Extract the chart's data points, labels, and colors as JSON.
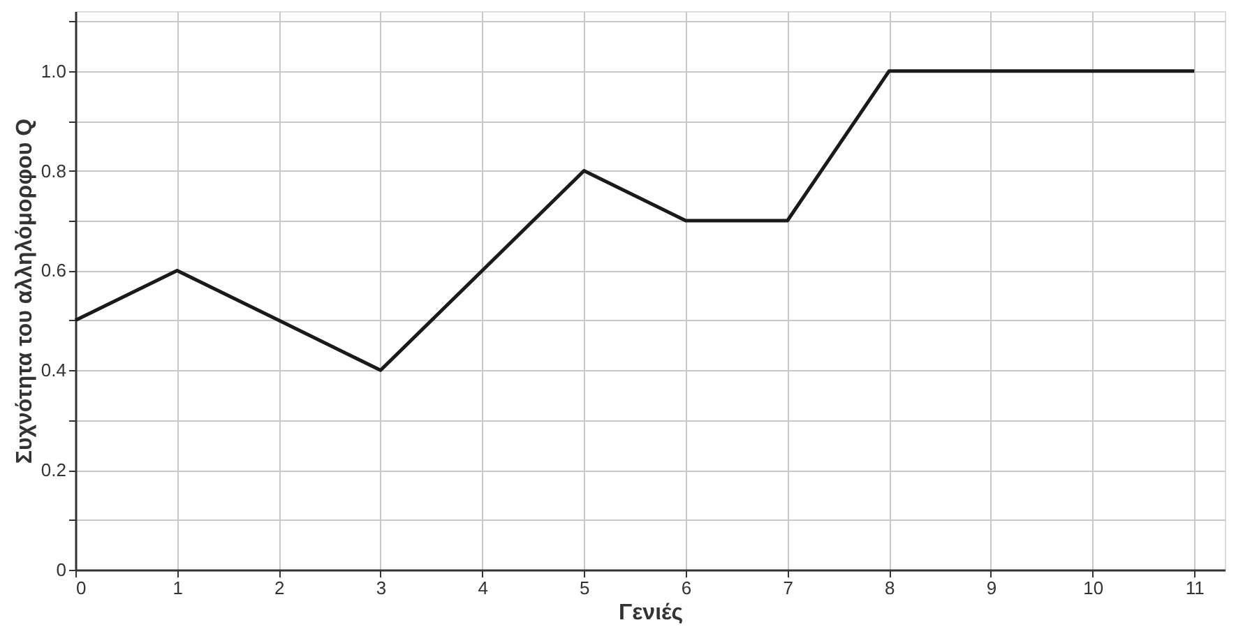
{
  "chart_data": {
    "type": "line",
    "xlabel": "Γενιές",
    "ylabel": "Συχνότητα του αλληλόμορφου Q",
    "x": [
      0,
      1,
      2,
      3,
      4,
      5,
      6,
      7,
      8,
      9,
      10,
      11
    ],
    "series": [
      {
        "color": "#1a1a1a",
        "values": [
          0.5,
          0.6,
          0.5,
          0.4,
          0.6,
          0.8,
          0.7,
          0.7,
          1.0,
          1.0,
          1.0,
          1.0
        ]
      }
    ],
    "xlim": [
      0,
      11.3
    ],
    "xticks": [
      0,
      1,
      2,
      3,
      4,
      5,
      6,
      7,
      8,
      9,
      10,
      11
    ],
    "ylim": [
      0,
      1.12
    ],
    "yticks": [
      0,
      {
        "value": 0.1,
        "label": null
      },
      0.2,
      {
        "value": 0.3,
        "label": null
      },
      0.4,
      {
        "value": 0.5,
        "label": null
      },
      0.6,
      {
        "value": 0.7,
        "label": null
      },
      0.8,
      {
        "value": 0.9,
        "label": null
      },
      {
        "value": 1.0,
        "label": "1.0"
      },
      {
        "value": 1.1,
        "label": null
      }
    ],
    "grid": true,
    "marker": "none",
    "line_style": "solid"
  }
}
